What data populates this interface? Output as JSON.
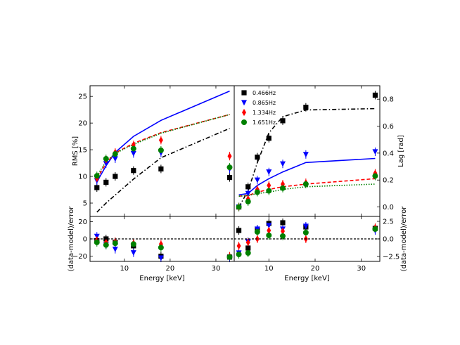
{
  "chart_data": [
    {
      "panel": "rms-top-left",
      "type": "scatter",
      "xlabel": "",
      "ylabel": "RMS [%]",
      "xlim": [
        2.5,
        34
      ],
      "ylim": [
        2.5,
        27
      ],
      "xticks": [
        10,
        20,
        30
      ],
      "yticks": [
        5,
        10,
        15,
        20,
        25
      ],
      "ytick_labels": [
        "5",
        "10",
        "15",
        "20",
        "25"
      ],
      "series": [
        {
          "color": "#000000",
          "marker": "square",
          "points": [
            [
              4,
              7.9
            ],
            [
              6,
              8.9
            ],
            [
              8,
              10.0
            ],
            [
              12,
              11.1
            ],
            [
              18,
              11.4
            ],
            [
              33,
              9.8
            ]
          ],
          "model": [
            [
              4,
              3.3
            ],
            [
              6,
              5.0
            ],
            [
              8,
              6.5
            ],
            [
              12,
              9.5
            ],
            [
              18,
              13.5
            ],
            [
              33,
              19.0
            ]
          ],
          "model_style": "dashdot"
        },
        {
          "color": "#0000ff",
          "marker": "triangle-down",
          "points": [
            [
              4,
              9.2
            ],
            [
              6,
              12.4
            ],
            [
              8,
              13.3
            ],
            [
              12,
              14.3
            ],
            [
              18,
              14.4
            ],
            [
              33,
              11.4
            ]
          ],
          "model": [
            [
              4,
              9.0
            ],
            [
              6,
              12.0
            ],
            [
              8,
              14.5
            ],
            [
              12,
              17.5
            ],
            [
              18,
              20.5
            ],
            [
              33,
              26.0
            ]
          ],
          "model_style": "solid"
        },
        {
          "color": "#ff0000",
          "marker": "diamond",
          "points": [
            [
              4,
              9.6
            ],
            [
              6,
              13.1
            ],
            [
              8,
              14.5
            ],
            [
              12,
              15.9
            ],
            [
              18,
              16.8
            ],
            [
              33,
              13.8
            ]
          ],
          "model": [
            [
              4,
              9.6
            ],
            [
              6,
              12.5
            ],
            [
              8,
              14.4
            ],
            [
              12,
              16.2
            ],
            [
              18,
              18.2
            ],
            [
              33,
              21.6
            ]
          ],
          "model_style": "dashed"
        },
        {
          "color": "#008000",
          "marker": "circle",
          "points": [
            [
              4,
              10.1
            ],
            [
              6,
              13.3
            ],
            [
              8,
              14.2
            ],
            [
              12,
              15.2
            ],
            [
              18,
              14.9
            ],
            [
              33,
              11.7
            ]
          ],
          "model": [
            [
              4,
              10.1
            ],
            [
              6,
              12.8
            ],
            [
              8,
              14.3
            ],
            [
              12,
              16.0
            ],
            [
              18,
              18.1
            ],
            [
              33,
              21.6
            ]
          ],
          "model_style": "dotted"
        }
      ]
    },
    {
      "panel": "lag-top-right",
      "type": "scatter",
      "xlabel": "",
      "ylabel": "Lag [rad]",
      "xlim": [
        2.5,
        34
      ],
      "ylim": [
        -0.07,
        0.9
      ],
      "xticks": [
        10,
        20,
        30
      ],
      "yticks": [
        0.0,
        0.2,
        0.4,
        0.6,
        0.8
      ],
      "ytick_labels": [
        "0.0",
        "0.2",
        "0.4",
        "0.6",
        "0.8"
      ],
      "legend": {
        "placement": "upper-left",
        "labels": [
          "0.466Hz",
          "0.865Hz",
          "1.334Hz",
          "1.651Hz"
        ]
      },
      "series": [
        {
          "name": "0.466Hz",
          "color": "#000000",
          "marker": "square",
          "points": [
            [
              3.5,
              0.0
            ],
            [
              5.5,
              0.15
            ],
            [
              7.5,
              0.37
            ],
            [
              10,
              0.51
            ],
            [
              13,
              0.64
            ],
            [
              18,
              0.74
            ],
            [
              33,
              0.83
            ]
          ],
          "model": [
            [
              3.5,
              0.0
            ],
            [
              5.5,
              0.12
            ],
            [
              7.5,
              0.33
            ],
            [
              10,
              0.55
            ],
            [
              13,
              0.67
            ],
            [
              18,
              0.72
            ],
            [
              33,
              0.73
            ]
          ],
          "model_style": "dashdot"
        },
        {
          "name": "0.865Hz",
          "color": "#0000ff",
          "marker": "triangle-down",
          "points": [
            [
              3.5,
              0.0
            ],
            [
              5.5,
              0.1
            ],
            [
              7.5,
              0.2
            ],
            [
              10,
              0.26
            ],
            [
              13,
              0.32
            ],
            [
              18,
              0.39
            ],
            [
              33,
              0.41
            ]
          ],
          "model": [
            [
              3.5,
              0.09
            ],
            [
              5.5,
              0.1
            ],
            [
              7.5,
              0.16
            ],
            [
              10,
              0.21
            ],
            [
              13,
              0.26
            ],
            [
              18,
              0.33
            ],
            [
              33,
              0.36
            ]
          ],
          "model_style": "solid"
        },
        {
          "name": "1.334Hz",
          "color": "#ff0000",
          "marker": "diamond",
          "points": [
            [
              3.5,
              0.0
            ],
            [
              5.5,
              0.06
            ],
            [
              7.5,
              0.13
            ],
            [
              10,
              0.16
            ],
            [
              13,
              0.17
            ],
            [
              18,
              0.18
            ],
            [
              33,
              0.25
            ]
          ],
          "model": [
            [
              3.5,
              0.08
            ],
            [
              5.5,
              0.085
            ],
            [
              7.5,
              0.11
            ],
            [
              10,
              0.13
            ],
            [
              13,
              0.15
            ],
            [
              18,
              0.17
            ],
            [
              33,
              0.21
            ]
          ],
          "model_style": "dashed"
        },
        {
          "name": "1.651Hz",
          "color": "#008000",
          "marker": "circle",
          "points": [
            [
              3.5,
              0.0
            ],
            [
              5.5,
              0.04
            ],
            [
              7.5,
              0.11
            ],
            [
              10,
              0.12
            ],
            [
              13,
              0.14
            ],
            [
              18,
              0.17
            ],
            [
              33,
              0.23
            ]
          ],
          "model": [
            [
              3.5,
              0.08
            ],
            [
              5.5,
              0.085
            ],
            [
              7.5,
              0.1
            ],
            [
              10,
              0.11
            ],
            [
              13,
              0.13
            ],
            [
              18,
              0.15
            ],
            [
              33,
              0.17
            ]
          ],
          "model_style": "dotted"
        }
      ]
    },
    {
      "panel": "residual-bottom-left",
      "type": "scatter",
      "xlabel": "Energy [keV]",
      "ylabel": "(data-model)/error",
      "xlim": [
        2.5,
        34
      ],
      "ylim": [
        -26,
        26
      ],
      "xticks": [
        10,
        20,
        30
      ],
      "yticks": [
        -20,
        0,
        20
      ],
      "ytick_labels": [
        "−20",
        "0",
        "20"
      ],
      "zero_line": true,
      "series": [
        {
          "color": "#000000",
          "marker": "square",
          "points": [
            [
              4,
              -2
            ],
            [
              6,
              0
            ],
            [
              8,
              -4
            ],
            [
              12,
              -8
            ],
            [
              18,
              -20
            ],
            [
              33,
              -21
            ]
          ]
        },
        {
          "color": "#0000ff",
          "marker": "triangle-down",
          "points": [
            [
              4,
              3
            ],
            [
              6,
              -7
            ],
            [
              8,
              -12
            ],
            [
              12,
              -16
            ],
            [
              18,
              -22
            ],
            [
              33,
              -22
            ]
          ]
        },
        {
          "color": "#ff0000",
          "marker": "diamond",
          "points": [
            [
              4,
              -1
            ],
            [
              6,
              -4
            ],
            [
              8,
              -3
            ],
            [
              12,
              -5
            ],
            [
              18,
              -6
            ],
            [
              33,
              -20
            ]
          ]
        },
        {
          "color": "#008000",
          "marker": "circle",
          "points": [
            [
              4,
              -4
            ],
            [
              6,
              -7
            ],
            [
              8,
              -5
            ],
            [
              12,
              -6
            ],
            [
              18,
              -10
            ],
            [
              33,
              -21
            ]
          ]
        }
      ]
    },
    {
      "panel": "residual-bottom-right",
      "type": "scatter",
      "xlabel": "Energy [keV]",
      "ylabel": "(data-model)/error",
      "xlim": [
        2.5,
        34
      ],
      "ylim": [
        -3.2,
        3.2
      ],
      "xticks": [
        10,
        20,
        30
      ],
      "yticks": [
        -2.5,
        0.0,
        2.5
      ],
      "ytick_labels": [
        "−2.5",
        "0.0",
        "2.5"
      ],
      "zero_line": true,
      "series": [
        {
          "color": "#000000",
          "marker": "square",
          "points": [
            [
              3.5,
              1.2
            ],
            [
              5.5,
              -1.3
            ],
            [
              7.5,
              1.3
            ],
            [
              10,
              2.2
            ],
            [
              13,
              2.3
            ],
            [
              18,
              1.7
            ],
            [
              33,
              1.5
            ]
          ]
        },
        {
          "color": "#0000ff",
          "marker": "triangle-down",
          "points": [
            [
              3.5,
              -2.0
            ],
            [
              5.5,
              -0.4
            ],
            [
              7.5,
              1.4
            ],
            [
              10,
              1.9
            ],
            [
              13,
              1.4
            ],
            [
              18,
              1.8
            ],
            [
              33,
              1.2
            ]
          ]
        },
        {
          "color": "#ff0000",
          "marker": "diamond",
          "points": [
            [
              3.5,
              -1.0
            ],
            [
              5.5,
              -0.5
            ],
            [
              7.5,
              0.0
            ],
            [
              10,
              1.2
            ],
            [
              13,
              1.1
            ],
            [
              18,
              0.0
            ],
            [
              33,
              1.6
            ]
          ]
        },
        {
          "color": "#008000",
          "marker": "circle",
          "points": [
            [
              3.5,
              -2.2
            ],
            [
              5.5,
              -2.0
            ],
            [
              7.5,
              1.0
            ],
            [
              10,
              0.5
            ],
            [
              13,
              0.4
            ],
            [
              18,
              0.9
            ],
            [
              33,
              1.4
            ]
          ]
        }
      ]
    }
  ]
}
